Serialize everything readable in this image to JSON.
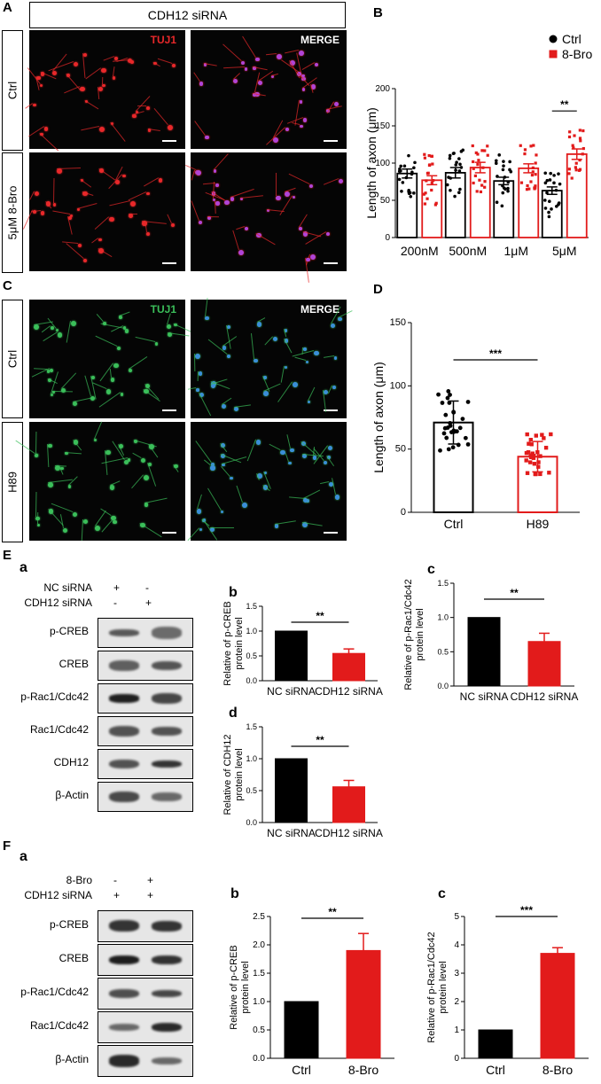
{
  "panel_letters": {
    "A": "A",
    "B": "B",
    "C": "C",
    "D": "D",
    "E": "E",
    "F": "F"
  },
  "sub_letters": {
    "Ea": "a",
    "Eb": "b",
    "Ec": "c",
    "Ed": "d",
    "Fa": "a",
    "Fb": "b",
    "Fc": "c"
  },
  "panelA": {
    "header": "CDH12 siRNA",
    "channel1": "TUJ1",
    "channel2": "MERGE",
    "row1": "Ctrl",
    "row2": "5μM 8-Bro",
    "colors": {
      "tuj1": "#e8282a",
      "merge_nuc": "#b044d8"
    }
  },
  "panelC": {
    "channel1": "TUJ1",
    "channel2": "MERGE",
    "row1": "Ctrl",
    "row2": "H89",
    "colors": {
      "tuj1": "#3bbf5a",
      "merge_nuc": "#3a8ed8"
    }
  },
  "panelE": {
    "conditions": [
      {
        "label": "NC siRNA",
        "marks": [
          "+",
          "-"
        ]
      },
      {
        "label": "CDH12 siRNA",
        "marks": [
          "-",
          "+"
        ]
      }
    ],
    "blots": [
      "p-CREB",
      "CREB",
      "p-Rac1/Cdc42",
      "Rac1/Cdc42",
      "CDH12",
      "β-Actin"
    ]
  },
  "panelF": {
    "conditions": [
      {
        "label": "8-Bro",
        "marks": [
          "-",
          "+"
        ]
      },
      {
        "label": "CDH12 siRNA",
        "marks": [
          "+",
          "+"
        ]
      }
    ],
    "blots": [
      "p-CREB",
      "CREB",
      "p-Rac1/Cdc42",
      "Rac1/Cdc42",
      "β-Actin"
    ]
  },
  "chart_data": [
    {
      "id": "B",
      "type": "bar",
      "categories": [
        "200nM",
        "500nM",
        "1μM",
        "5μM"
      ],
      "series": [
        {
          "name": "Ctrl",
          "color": "#000000",
          "values": [
            86,
            87,
            76,
            63
          ],
          "error": [
            6,
            7,
            5,
            5
          ]
        },
        {
          "name": "8-Bro",
          "color": "#e21b1b",
          "values": [
            77,
            94,
            93,
            112
          ],
          "error": [
            6,
            7,
            6,
            7
          ]
        }
      ],
      "ylabel": "Length of axon (μm)",
      "ylim": [
        0,
        200
      ],
      "yticks": [
        0,
        50,
        100,
        150,
        200
      ],
      "legend": "top-right",
      "significance": [
        {
          "category": "5μM",
          "label": "**"
        }
      ]
    },
    {
      "id": "D",
      "type": "bar",
      "categories": [
        "Ctrl",
        "H89"
      ],
      "values": [
        71,
        44
      ],
      "error": [
        17,
        12
      ],
      "colors": [
        "#000000",
        "#e21b1b"
      ],
      "ylabel": "Length of axon (μm)",
      "ylim": [
        0,
        150
      ],
      "yticks": [
        0,
        50,
        100,
        150
      ],
      "significance": "***"
    },
    {
      "id": "Eb",
      "type": "bar",
      "categories": [
        "NC siRNA",
        "CDH12 siRNA"
      ],
      "values": [
        1.0,
        0.55
      ],
      "error": [
        0,
        0.09
      ],
      "colors": [
        "#000000",
        "#e21b1b"
      ],
      "ylabel": "Relative of p-CREB protein level",
      "ylim": [
        0,
        1.5
      ],
      "yticks": [
        0.0,
        0.5,
        1.0,
        1.5
      ],
      "significance": "**"
    },
    {
      "id": "Ec",
      "type": "bar",
      "categories": [
        "NC siRNA",
        "CDH12 siRNA"
      ],
      "values": [
        1.0,
        0.65
      ],
      "error": [
        0,
        0.12
      ],
      "colors": [
        "#000000",
        "#e21b1b"
      ],
      "ylabel": "Relative of p-Rac1/Cdc42 protein level",
      "ylim": [
        0,
        1.5
      ],
      "yticks": [
        0.0,
        0.5,
        1.0,
        1.5
      ],
      "significance": "**"
    },
    {
      "id": "Ed",
      "type": "bar",
      "categories": [
        "NC siRNA",
        "CDH12 siRNA"
      ],
      "values": [
        1.0,
        0.56
      ],
      "error": [
        0,
        0.1
      ],
      "colors": [
        "#000000",
        "#e21b1b"
      ],
      "ylabel": "Relative of CDH12 protein level",
      "ylim": [
        0,
        1.5
      ],
      "yticks": [
        0.0,
        0.5,
        1.0,
        1.5
      ],
      "significance": "**"
    },
    {
      "id": "Fb",
      "type": "bar",
      "categories": [
        "Ctrl",
        "8-Bro"
      ],
      "values": [
        1.0,
        1.9
      ],
      "error": [
        0,
        0.3
      ],
      "colors": [
        "#000000",
        "#e21b1b"
      ],
      "ylabel": "Relative of p-CREB protein level",
      "ylim": [
        0,
        2.5
      ],
      "yticks": [
        0.0,
        0.5,
        1.0,
        1.5,
        2.0,
        2.5
      ],
      "significance": "**"
    },
    {
      "id": "Fc",
      "type": "bar",
      "categories": [
        "Ctrl",
        "8-Bro"
      ],
      "values": [
        1.0,
        3.7
      ],
      "error": [
        0,
        0.2
      ],
      "colors": [
        "#000000",
        "#e21b1b"
      ],
      "ylabel": "Relative of p-Rac1/Cdc42 protein level",
      "ylim": [
        0,
        5
      ],
      "yticks": [
        0,
        1,
        2,
        3,
        4,
        5
      ],
      "significance": "***"
    }
  ]
}
